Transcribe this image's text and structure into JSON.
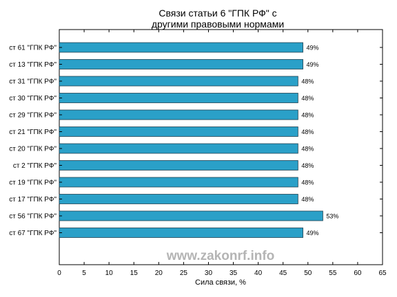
{
  "chart_data": {
    "type": "bar",
    "orientation": "horizontal",
    "title": [
      "Связи статьи 6 \"ГПК РФ\" с",
      "другими правовыми нормами"
    ],
    "xlabel": "Сила связи, %",
    "ylabel": "",
    "xlim": [
      0,
      65
    ],
    "xticks": [
      0,
      5,
      10,
      15,
      20,
      25,
      30,
      35,
      40,
      45,
      50,
      55,
      60,
      65
    ],
    "bar_color": "#2aa0c8",
    "bar_edge_color": "#1f3f4f",
    "grid": false,
    "categories": [
      "ст 61 \"ГПК РФ\"",
      "ст 13 \"ГПК РФ\"",
      "ст 31 \"ГПК РФ\"",
      "ст 30 \"ГПК РФ\"",
      "ст 29 \"ГПК РФ\"",
      "ст 21 \"ГПК РФ\"",
      "ст 20 \"ГПК РФ\"",
      "ст 2 \"ГПК РФ\"",
      "ст 19 \"ГПК РФ\"",
      "ст 17 \"ГПК РФ\"",
      "ст 56 \"ГПК РФ\"",
      "ст 67 \"ГПК РФ\""
    ],
    "values": [
      49,
      49,
      48,
      48,
      48,
      48,
      48,
      48,
      48,
      48,
      53,
      49
    ],
    "value_labels": [
      "49%",
      "49%",
      "48%",
      "48%",
      "48%",
      "48%",
      "48%",
      "48%",
      "48%",
      "48%",
      "53%",
      "49%"
    ]
  },
  "watermark": "www.zakonrf.info"
}
